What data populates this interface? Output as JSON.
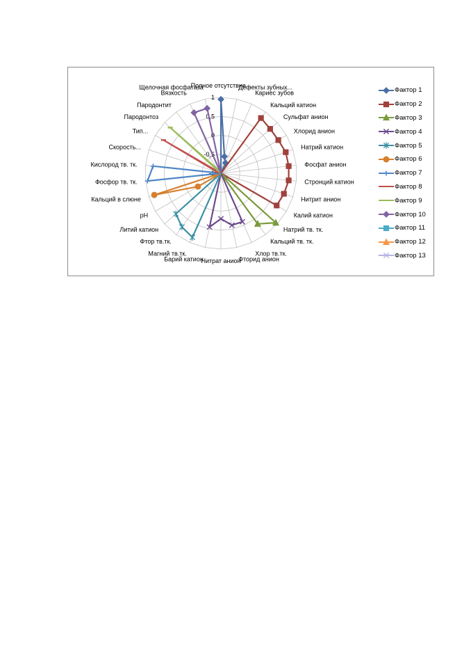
{
  "chart_data": {
    "type": "radar",
    "title": "",
    "scale": {
      "min": -1,
      "max": 1,
      "ticks": [
        -1,
        -0.5,
        0,
        0.5,
        1
      ]
    },
    "tick_labels": [
      "-1",
      "-0,5",
      "0",
      "0,5",
      "1"
    ],
    "categories": [
      "Полное отсутствие...",
      "Дефекты зубных...",
      "Кариес зубов",
      "Кальций катион",
      "Сульфат анион",
      "Хлорид анион",
      "Натрий катион",
      "Фосфат анион",
      "Стронций катион",
      "Нитрит анион",
      "Калий катион",
      "Натрий тв. тк.",
      "Кальций тв. тк.",
      "Хлор тв.тк.",
      "Фторид анион",
      "Нитрат анион",
      "Барий катион",
      "Магний тв.тк.",
      "Фтор тв.тк.",
      "Литий катион",
      "pH",
      "Кальций в слюне",
      "Фосфор тв. тк.",
      "Кислород тв. тк.",
      "Скорость...",
      "Тип...",
      "Пародонтоз",
      "Пародонтит",
      "Вязкость",
      "Щелочная фосфатаза"
    ],
    "series": [
      {
        "name": "Фактор 1",
        "color": "#4a6fa5",
        "marker": "diamond",
        "points": [
          [
            0,
            0.95
          ],
          [
            1,
            -0.55
          ],
          [
            2,
            -0.7
          ]
        ]
      },
      {
        "name": "Фактор 2",
        "color": "#a0413c",
        "marker": "square",
        "points": [
          [
            3,
            0.8
          ],
          [
            4,
            0.75
          ],
          [
            5,
            0.75
          ],
          [
            6,
            0.8
          ],
          [
            7,
            0.8
          ],
          [
            8,
            0.8
          ],
          [
            9,
            0.75
          ],
          [
            10,
            0.7
          ]
        ]
      },
      {
        "name": "Фактор 3",
        "color": "#7a9a3c",
        "marker": "triangle",
        "points": [
          [
            11,
            0.95
          ],
          [
            12,
            0.65
          ]
        ]
      },
      {
        "name": "Фактор 4",
        "color": "#6b4a8c",
        "marker": "x",
        "points": [
          [
            13,
            0.4
          ],
          [
            14,
            0.4
          ],
          [
            15,
            0.2
          ],
          [
            16,
            0.45
          ]
        ]
      },
      {
        "name": "Фактор 5",
        "color": "#3c8fa5",
        "marker": "star",
        "points": [
          [
            17,
            0.85
          ],
          [
            18,
            0.75
          ],
          [
            19,
            0.6
          ]
        ]
      },
      {
        "name": "Фактор 6",
        "color": "#d6802e",
        "marker": "circle",
        "points": [
          [
            20,
            -0.3
          ],
          [
            21,
            0.85
          ]
        ]
      },
      {
        "name": "Фактор 7",
        "color": "#4f86c6",
        "marker": "plus",
        "points": [
          [
            22,
            0.95
          ],
          [
            23,
            0.8
          ]
        ]
      },
      {
        "name": "Фактор 8",
        "color": "#c0504d",
        "marker": "dash",
        "points": [
          [
            24,
            -0.9
          ],
          [
            25,
            0.75
          ]
        ]
      },
      {
        "name": "Фактор 9",
        "color": "#9bbb59",
        "marker": "dash",
        "points": [
          [
            26,
            0.8
          ],
          [
            27,
            -0.9
          ]
        ]
      },
      {
        "name": "Фактор 10",
        "color": "#8064a2",
        "marker": "diamond",
        "points": [
          [
            28,
            0.75
          ],
          [
            29,
            0.75
          ]
        ]
      },
      {
        "name": "Фактор 11",
        "color": "#4bacc6",
        "marker": "square",
        "points": []
      },
      {
        "name": "Фактор 12",
        "color": "#f79646",
        "marker": "triangle",
        "points": []
      },
      {
        "name": "Фактор 13",
        "color": "#b3b3e6",
        "marker": "x",
        "points": []
      }
    ]
  }
}
